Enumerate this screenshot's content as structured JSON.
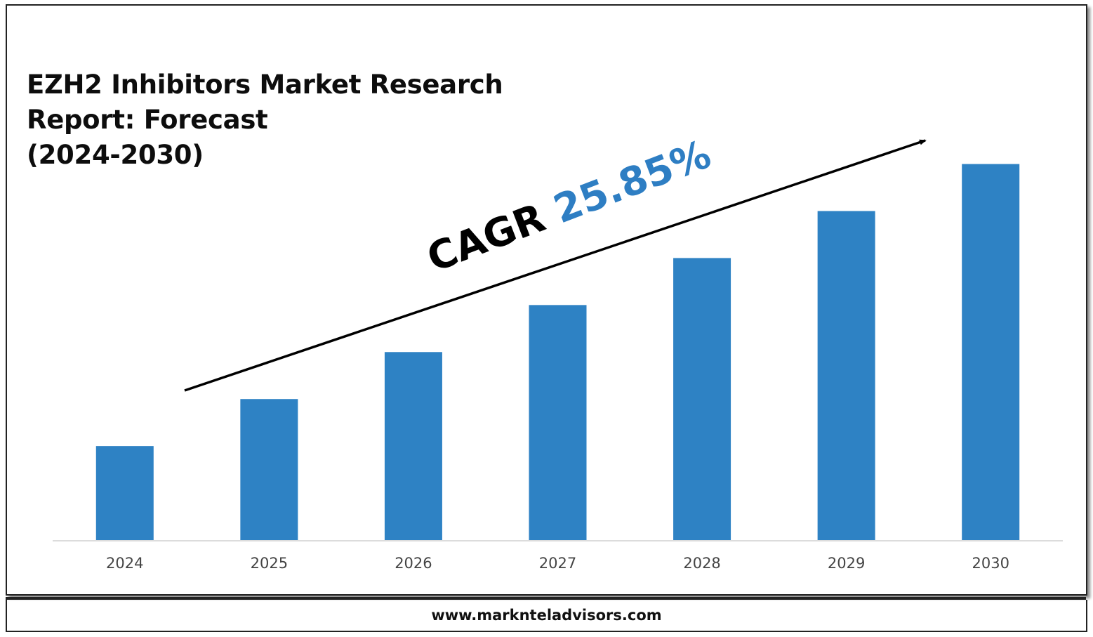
{
  "title_lines": [
    "EZH2 Inhibitors Market Research",
    "Report: Forecast",
    "(2024-2030)"
  ],
  "cagr": {
    "label": "CAGR",
    "value": "25.85%"
  },
  "footer": {
    "url": "www.marknteladvisors.com"
  },
  "colors": {
    "bar": "#2e82c4",
    "cagr_value": "#2e7ec3",
    "axis": "#d0d0d0",
    "tick_text": "#444444"
  },
  "chart_data": {
    "type": "bar",
    "title": "EZH2 Inhibitors Market Research Report: Forecast (2024-2030)",
    "categories": [
      "2024",
      "2025",
      "2026",
      "2027",
      "2028",
      "2029",
      "2030"
    ],
    "series": [
      {
        "values": [
          1,
          1.5,
          2,
          2.5,
          3,
          3.5,
          4
        ]
      }
    ],
    "ylim": [
      0,
      4.4
    ],
    "grid": false,
    "legend": "none",
    "annotation": "CAGR 25.85% (trend arrow)"
  }
}
